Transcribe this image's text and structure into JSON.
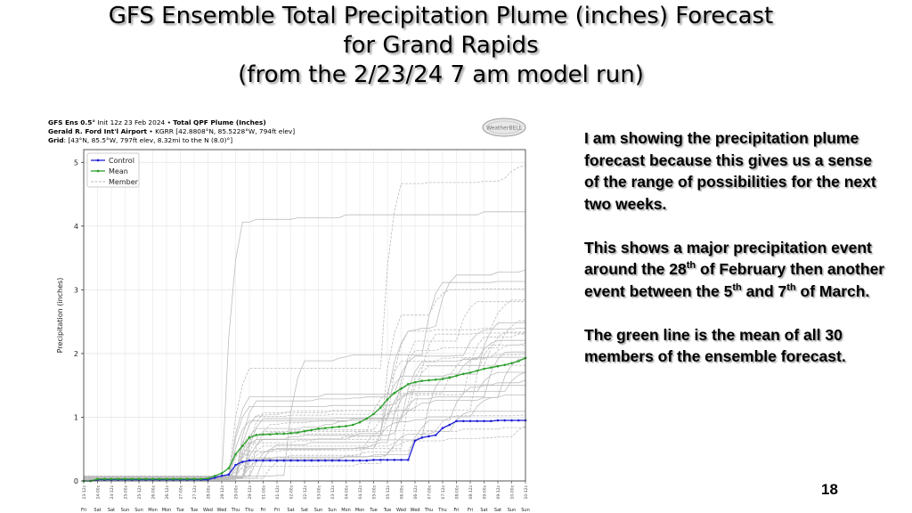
{
  "slide": {
    "title_lines": [
      "GFS  Ensemble  Total Precipitation Plume (inches) Forecast",
      "for Grand Rapids",
      "(from the 2/23/24 7 am model run)"
    ],
    "page_number": "18"
  },
  "chart_header": {
    "line1_a": "GFS Ens 0.5°",
    "line1_b": " Init 12z 23 Feb 2024 • ",
    "line1_c": "Total QPF Plume (Inches)",
    "line2_a": "Gerald R. Ford Int'l Airport",
    "line2_b": " • KGRR [42.8808°N, 85.5228°W, 794ft elev]",
    "line3_a": "Grid",
    "line3_b": ": [43°N, 85.5°W, 797ft elev, 8.32mi to the N (8.0)°]"
  },
  "logo_text": "WeatherBELL",
  "side_text": {
    "p1": "I am showing the precipitation plume forecast because this gives us a sense of the range of possibilities for the next two weeks.",
    "p2_a": "This shows a major precipitation event around the 28",
    "p2_sup1": "th",
    "p2_b": " of February then another event between the 5",
    "p2_sup2": "th",
    "p2_c": " and 7",
    "p2_sup3": "th",
    "p2_d": " of March.",
    "p3": "The green line is the mean of all 30 members of the ensemble forecast."
  },
  "colors": {
    "control": "#1f1fd6",
    "mean": "#2aa02a",
    "member": "#bdbdbd",
    "grid": "#e6e6e6"
  },
  "chart_data": {
    "type": "line",
    "ylabel": "Precipitation (inches)",
    "ylim": [
      0,
      5.2
    ],
    "y_ticks": [
      0,
      1,
      2,
      3,
      4,
      5
    ],
    "grid": true,
    "legend": "top-left",
    "legend_entries": [
      "Control",
      "Mean",
      "Member"
    ],
    "x_hours": [
      0,
      6,
      12,
      18,
      24,
      30,
      36,
      42,
      48,
      54,
      60,
      66,
      72,
      78,
      84,
      90,
      96,
      102,
      108,
      114,
      120,
      126,
      132,
      138,
      144,
      150,
      156,
      162,
      168,
      174,
      180,
      186,
      192,
      198,
      204,
      210,
      216,
      222,
      228,
      234,
      240,
      246,
      252,
      258,
      264,
      270,
      276,
      282,
      288,
      294,
      300,
      306,
      312,
      318,
      324,
      330,
      336,
      342,
      348,
      354,
      360,
      366,
      372,
      378,
      384
    ],
    "x_tick_labels": [
      "23-12z",
      "24-00z",
      "24-12z",
      "25-00z",
      "25-12z",
      "26-00z",
      "26-12z",
      "27-00z",
      "27-12z",
      "28-00z",
      "28-12z",
      "29-00z",
      "29-12z",
      "01-00z",
      "01-12z",
      "02-00z",
      "02-12z",
      "03-00z",
      "03-12z",
      "04-00z",
      "04-12z",
      "05-00z",
      "05-12z",
      "06-00z",
      "06-12z",
      "07-00z",
      "07-12z",
      "08-00z",
      "08-12z",
      "09-00z",
      "09-12z",
      "10-00z",
      "10-12z"
    ],
    "x_day_labels": [
      "Fri",
      "Sat",
      "Sat",
      "Sun",
      "Sun",
      "Mon",
      "Mon",
      "Tue",
      "Tue",
      "Wed",
      "Wed",
      "Thu",
      "Thu",
      "Fri",
      "Fri",
      "Sat",
      "Sat",
      "Sun",
      "Sun",
      "Mon",
      "Mon",
      "Tue",
      "Tue",
      "Wed",
      "Wed",
      "Thu",
      "Thu",
      "Fri",
      "Fri",
      "Sat",
      "Sat",
      "Sun",
      "Sun"
    ],
    "series": [
      {
        "name": "Control",
        "values": [
          0,
          0,
          0.02,
          0.02,
          0.02,
          0.02,
          0.02,
          0.02,
          0.02,
          0.02,
          0.02,
          0.02,
          0.02,
          0.02,
          0.02,
          0.02,
          0.02,
          0.02,
          0.02,
          0.05,
          0.08,
          0.1,
          0.25,
          0.3,
          0.32,
          0.32,
          0.32,
          0.32,
          0.32,
          0.32,
          0.32,
          0.32,
          0.32,
          0.32,
          0.32,
          0.32,
          0.32,
          0.32,
          0.32,
          0.32,
          0.32,
          0.32,
          0.33,
          0.33,
          0.33,
          0.33,
          0.33,
          0.33,
          0.63,
          0.68,
          0.7,
          0.72,
          0.83,
          0.88,
          0.94,
          0.94,
          0.94,
          0.94,
          0.94,
          0.94,
          0.95,
          0.95,
          0.95,
          0.95,
          0.95
        ]
      },
      {
        "name": "Mean",
        "values": [
          0,
          0,
          0.03,
          0.03,
          0.03,
          0.03,
          0.03,
          0.03,
          0.03,
          0.03,
          0.03,
          0.03,
          0.03,
          0.03,
          0.03,
          0.03,
          0.03,
          0.03,
          0.04,
          0.08,
          0.12,
          0.2,
          0.42,
          0.55,
          0.68,
          0.72,
          0.73,
          0.73,
          0.74,
          0.74,
          0.75,
          0.76,
          0.78,
          0.8,
          0.82,
          0.83,
          0.84,
          0.85,
          0.86,
          0.88,
          0.92,
          0.98,
          1.05,
          1.15,
          1.28,
          1.38,
          1.45,
          1.52,
          1.55,
          1.57,
          1.58,
          1.59,
          1.6,
          1.62,
          1.65,
          1.68,
          1.7,
          1.73,
          1.76,
          1.78,
          1.8,
          1.82,
          1.85,
          1.88,
          1.93
        ]
      }
    ]
  }
}
